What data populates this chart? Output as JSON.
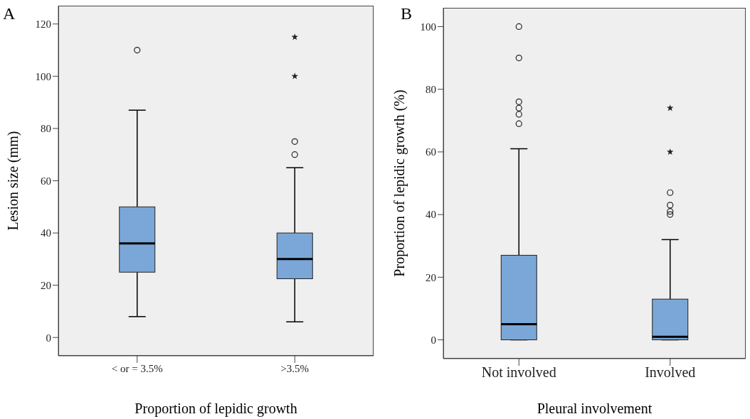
{
  "chart_data": [
    {
      "type": "box",
      "xlabel": "Proportion of lepidic growth",
      "ylabel": "Lesion size (mm)",
      "annotations": [
        "A"
      ],
      "categories": [
        "< or = 3.5%",
        ">3.5%"
      ],
      "color": "#7aa7d7",
      "ylim": [
        -7,
        127
      ],
      "yticks": [
        0,
        20,
        40,
        60,
        80,
        100,
        120
      ],
      "grid": false,
      "boxes": [
        {
          "low": 8,
          "q1": 25,
          "median": 36,
          "q3": 50,
          "high": 87,
          "outliers": [
            110
          ]
        },
        {
          "low": 6,
          "q1": 22.5,
          "median": 30,
          "q3": 40,
          "high": 65,
          "outliers": [
            70,
            75,
            100,
            115
          ]
        }
      ]
    },
    {
      "type": "box",
      "xlabel": "Pleural involvement",
      "ylabel": "Proportion of lepidic growth (%)",
      "annotations": [
        "B"
      ],
      "categories": [
        "Not involved",
        "Involved"
      ],
      "color": "#7aa7d7",
      "ylim": [
        -6,
        106
      ],
      "yticks": [
        0,
        20,
        40,
        60,
        80,
        100
      ],
      "grid": false,
      "boxes": [
        {
          "low": 0,
          "q1": 0,
          "median": 5,
          "q3": 27,
          "high": 61,
          "outliers": [
            69,
            72,
            74,
            76,
            90,
            100
          ]
        },
        {
          "low": 0,
          "q1": 0,
          "median": 1,
          "q3": 13,
          "high": 32,
          "outliers": [
            40,
            41,
            43,
            47,
            60,
            74
          ]
        }
      ]
    }
  ]
}
